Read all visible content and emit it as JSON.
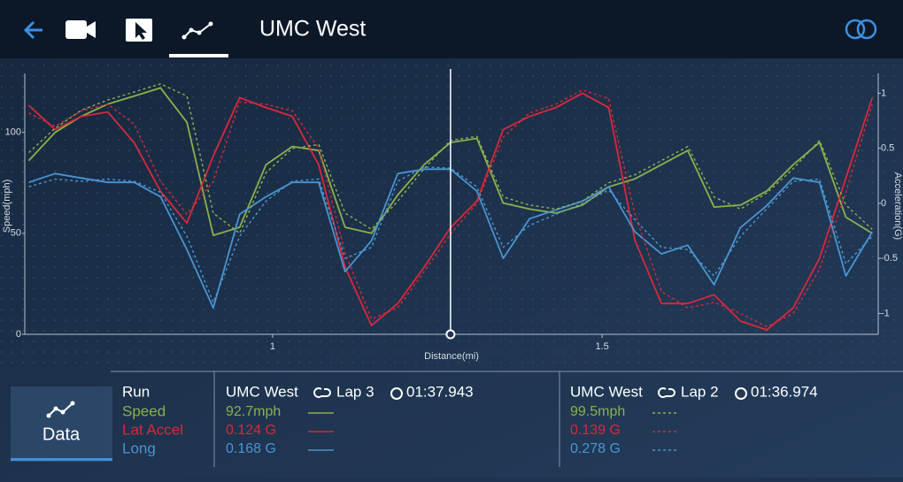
{
  "header": {
    "title": "UMC West"
  },
  "chart_data": {
    "type": "line",
    "xlabel": "Distance(mi)",
    "ylabel": "Speed(mph)",
    "y2label": "Acceleration(G)",
    "x": [
      0.63,
      0.67,
      0.71,
      0.75,
      0.79,
      0.83,
      0.87,
      0.91,
      0.95,
      0.99,
      1.03,
      1.07,
      1.11,
      1.15,
      1.19,
      1.23,
      1.27,
      1.31,
      1.35,
      1.39,
      1.43,
      1.47,
      1.51,
      1.55,
      1.59,
      1.63,
      1.67,
      1.71,
      1.75,
      1.79,
      1.83,
      1.87,
      1.91
    ],
    "xlim": [
      0.624,
      1.919
    ],
    "xticks": [
      1,
      1.5
    ],
    "ylim": [
      0,
      127
    ],
    "yticks": [
      0,
      50,
      100
    ],
    "y2lim": [
      -1.19,
      1.14
    ],
    "y2ticks": [
      -1,
      -0.5,
      0,
      0.5,
      1
    ],
    "cursor": 1.27,
    "series": [
      {
        "name": "Speed",
        "color": "#8db04a",
        "axis": "y",
        "values": [
          86,
          100,
          108,
          114,
          118,
          122,
          105,
          49,
          53,
          84,
          93,
          91,
          53,
          50,
          69,
          84,
          95,
          97,
          65,
          62,
          60,
          64,
          73,
          77,
          84,
          91,
          63,
          64,
          71,
          84,
          95,
          58,
          50
        ]
      },
      {
        "name": "Lat Accel",
        "color": "#d9283a",
        "axis": "y2",
        "values": [
          0.89,
          0.67,
          0.79,
          0.83,
          0.55,
          0.11,
          -0.18,
          0.43,
          0.96,
          0.87,
          0.79,
          0.35,
          -0.58,
          -1.11,
          -0.91,
          -0.58,
          -0.22,
          0.02,
          0.67,
          0.79,
          0.87,
          1.0,
          0.87,
          -0.34,
          -0.91,
          -0.91,
          -0.83,
          -1.07,
          -1.15,
          -0.95,
          -0.5,
          0.23,
          0.96
        ]
      },
      {
        "name": "Long",
        "color": "#4a94d0",
        "axis": "y2",
        "values": [
          0.19,
          0.27,
          0.23,
          0.19,
          0.19,
          0.06,
          -0.42,
          -0.95,
          -0.1,
          0.06,
          0.19,
          0.19,
          -0.62,
          -0.34,
          0.27,
          0.31,
          0.31,
          0.11,
          -0.5,
          -0.14,
          -0.06,
          0.02,
          0.15,
          -0.26,
          -0.46,
          -0.38,
          -0.74,
          -0.22,
          -0.02,
          0.23,
          0.19,
          -0.66,
          -0.26
        ]
      },
      {
        "color": "#8db04a",
        "axis": "y",
        "dash": true,
        "values": [
          90,
          102,
          111,
          116,
          120,
          124,
          118,
          60,
          50,
          80,
          92,
          94,
          60,
          52,
          66,
          82,
          96,
          98,
          68,
          64,
          62,
          66,
          75,
          79,
          86,
          93,
          68,
          62,
          70,
          82,
          96,
          64,
          52
        ]
      },
      {
        "color": "#d9283a",
        "axis": "y2",
        "dash": true,
        "values": [
          0.82,
          0.7,
          0.84,
          0.9,
          0.72,
          0.2,
          -0.1,
          0.2,
          0.92,
          0.9,
          0.84,
          0.5,
          -0.45,
          -1.05,
          -0.95,
          -0.62,
          -0.28,
          0.0,
          0.6,
          0.82,
          0.9,
          1.03,
          0.95,
          -0.1,
          -0.8,
          -0.95,
          -0.9,
          -1.0,
          -1.12,
          -1.0,
          -0.6,
          0.1,
          0.9
        ]
      },
      {
        "color": "#4a94d0",
        "axis": "y2",
        "dash": true,
        "values": [
          0.15,
          0.22,
          0.2,
          0.22,
          0.2,
          0.1,
          -0.3,
          -0.9,
          -0.3,
          0.02,
          0.2,
          0.22,
          -0.5,
          -0.4,
          0.2,
          0.33,
          0.32,
          0.15,
          -0.4,
          -0.2,
          -0.1,
          0.0,
          0.12,
          -0.15,
          -0.4,
          -0.42,
          -0.66,
          -0.3,
          -0.05,
          0.2,
          0.22,
          -0.55,
          -0.3
        ]
      }
    ]
  },
  "run_label": "Run",
  "data_button": "Data",
  "panels": [
    {
      "track": "UMC West",
      "lap": "Lap 3",
      "time": "01:37.943",
      "readings": [
        "92.7mph",
        "0.124 G",
        "0.168 G"
      ]
    },
    {
      "track": "UMC West",
      "lap": "Lap 2",
      "time": "01:36.974",
      "readings": [
        "99.5mph",
        "0.139 G",
        "0.278 G"
      ]
    }
  ]
}
